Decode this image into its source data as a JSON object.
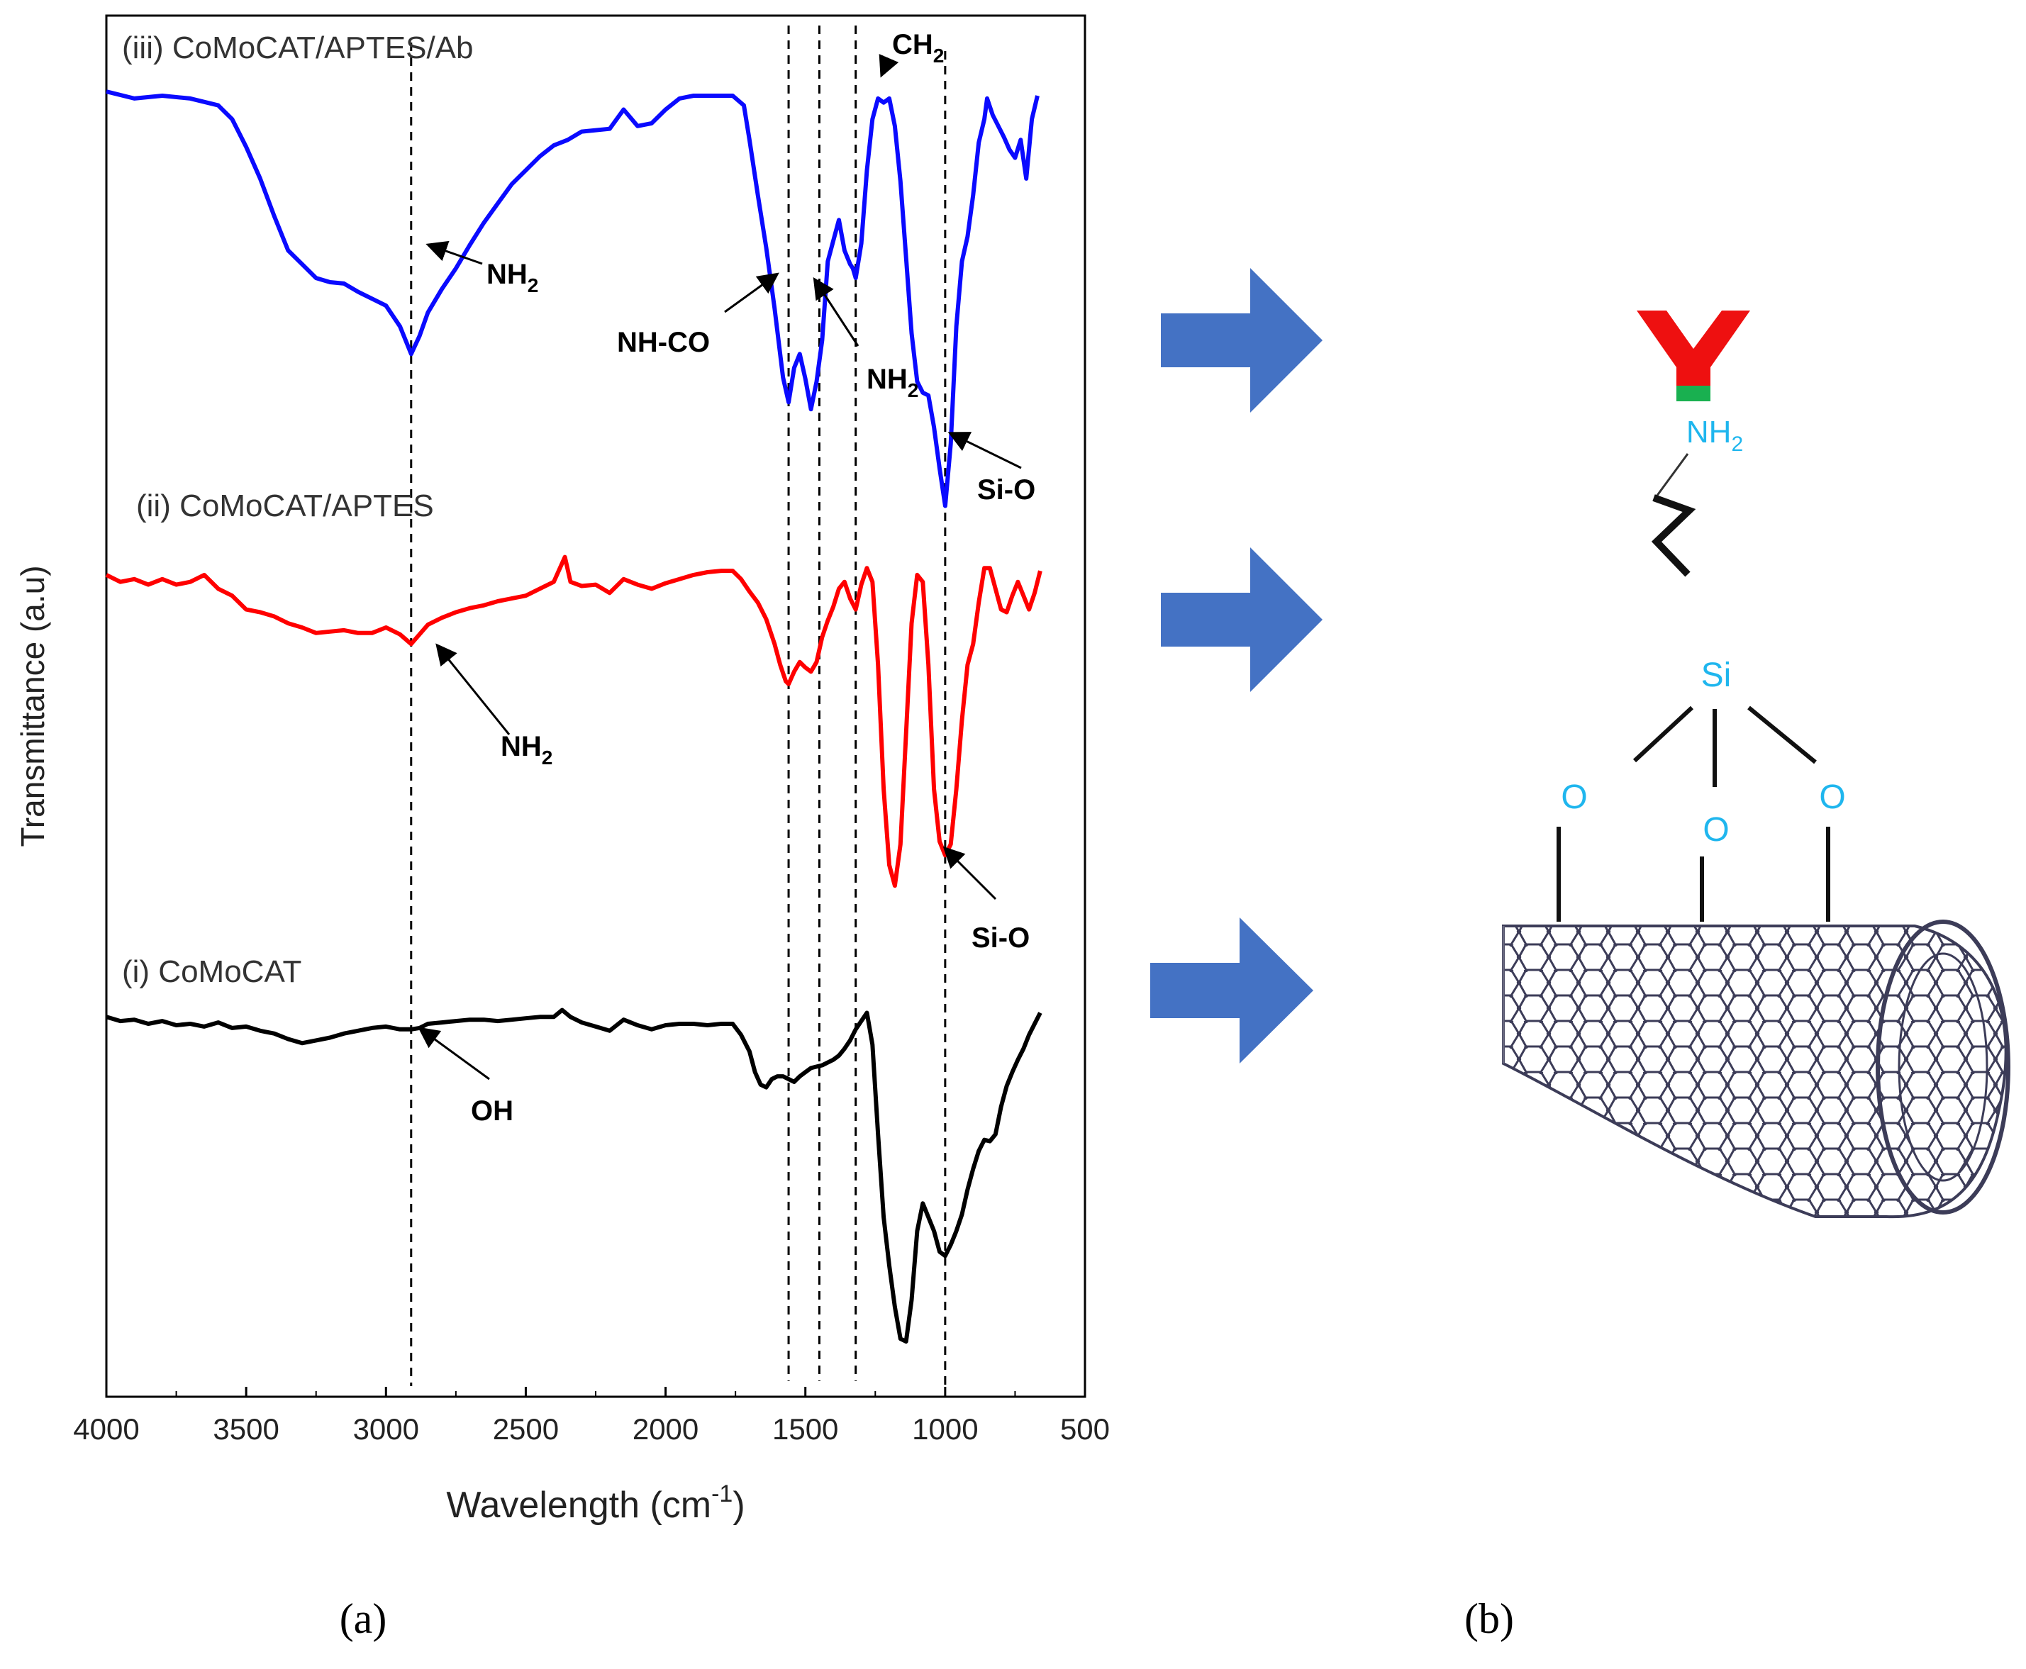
{
  "chart_data": {
    "type": "line",
    "xlabel": "Wavelength (cm",
    "xlabel_sup": "-1",
    "xlabel_end": ")",
    "ylabel": "Transmittance (a.u)",
    "xlim": [
      4000,
      500
    ],
    "x_ticks": [
      4000,
      3500,
      3000,
      2500,
      2000,
      1500,
      1000,
      500
    ],
    "y_ticks_labeled": false,
    "ref_lines_x": [
      2910,
      1560,
      1450,
      1320,
      1000
    ],
    "series": [
      {
        "name": "(iii) CoMoCAT/APTES/Ab",
        "color": "#0a0aff",
        "ylim_fraction": "top",
        "points": [
          [
            4000,
            0.055
          ],
          [
            3900,
            0.06
          ],
          [
            3800,
            0.058
          ],
          [
            3700,
            0.06
          ],
          [
            3600,
            0.065
          ],
          [
            3550,
            0.075
          ],
          [
            3500,
            0.095
          ],
          [
            3450,
            0.118
          ],
          [
            3400,
            0.145
          ],
          [
            3350,
            0.17
          ],
          [
            3300,
            0.18
          ],
          [
            3250,
            0.19
          ],
          [
            3200,
            0.193
          ],
          [
            3150,
            0.194
          ],
          [
            3100,
            0.2
          ],
          [
            3050,
            0.205
          ],
          [
            3000,
            0.21
          ],
          [
            2950,
            0.225
          ],
          [
            2910,
            0.245
          ],
          [
            2880,
            0.232
          ],
          [
            2850,
            0.215
          ],
          [
            2800,
            0.198
          ],
          [
            2750,
            0.183
          ],
          [
            2700,
            0.166
          ],
          [
            2650,
            0.15
          ],
          [
            2600,
            0.136
          ],
          [
            2550,
            0.122
          ],
          [
            2500,
            0.112
          ],
          [
            2450,
            0.102
          ],
          [
            2400,
            0.094
          ],
          [
            2350,
            0.09
          ],
          [
            2300,
            0.084
          ],
          [
            2200,
            0.082
          ],
          [
            2150,
            0.068
          ],
          [
            2100,
            0.08
          ],
          [
            2050,
            0.078
          ],
          [
            2000,
            0.068
          ],
          [
            1950,
            0.06
          ],
          [
            1900,
            0.058
          ],
          [
            1800,
            0.058
          ],
          [
            1760,
            0.058
          ],
          [
            1720,
            0.065
          ],
          [
            1700,
            0.09
          ],
          [
            1670,
            0.13
          ],
          [
            1640,
            0.168
          ],
          [
            1610,
            0.212
          ],
          [
            1580,
            0.262
          ],
          [
            1560,
            0.28
          ],
          [
            1540,
            0.255
          ],
          [
            1520,
            0.245
          ],
          [
            1500,
            0.263
          ],
          [
            1480,
            0.285
          ],
          [
            1460,
            0.265
          ],
          [
            1440,
            0.235
          ],
          [
            1420,
            0.178
          ],
          [
            1400,
            0.163
          ],
          [
            1380,
            0.148
          ],
          [
            1360,
            0.17
          ],
          [
            1340,
            0.18
          ],
          [
            1330,
            0.183
          ],
          [
            1320,
            0.19
          ],
          [
            1300,
            0.165
          ],
          [
            1280,
            0.112
          ],
          [
            1260,
            0.075
          ],
          [
            1240,
            0.06
          ],
          [
            1220,
            0.063
          ],
          [
            1200,
            0.06
          ],
          [
            1180,
            0.08
          ],
          [
            1160,
            0.12
          ],
          [
            1140,
            0.175
          ],
          [
            1120,
            0.23
          ],
          [
            1100,
            0.265
          ],
          [
            1080,
            0.273
          ],
          [
            1060,
            0.275
          ],
          [
            1040,
            0.298
          ],
          [
            1020,
            0.328
          ],
          [
            1000,
            0.355
          ],
          [
            980,
            0.31
          ],
          [
            960,
            0.225
          ],
          [
            940,
            0.178
          ],
          [
            920,
            0.16
          ],
          [
            900,
            0.13
          ],
          [
            880,
            0.092
          ],
          [
            860,
            0.075
          ],
          [
            850,
            0.06
          ],
          [
            830,
            0.072
          ],
          [
            810,
            0.08
          ],
          [
            790,
            0.088
          ],
          [
            770,
            0.097
          ],
          [
            750,
            0.103
          ],
          [
            730,
            0.09
          ],
          [
            710,
            0.118
          ],
          [
            690,
            0.075
          ],
          [
            670,
            0.058
          ]
        ]
      },
      {
        "name": "(ii) CoMoCAT/APTES",
        "color": "#ff0000",
        "points": [
          [
            4000,
            0.405
          ],
          [
            3950,
            0.41
          ],
          [
            3900,
            0.408
          ],
          [
            3850,
            0.412
          ],
          [
            3800,
            0.408
          ],
          [
            3750,
            0.412
          ],
          [
            3700,
            0.41
          ],
          [
            3650,
            0.405
          ],
          [
            3600,
            0.415
          ],
          [
            3550,
            0.42
          ],
          [
            3500,
            0.43
          ],
          [
            3450,
            0.432
          ],
          [
            3400,
            0.435
          ],
          [
            3350,
            0.44
          ],
          [
            3300,
            0.443
          ],
          [
            3250,
            0.447
          ],
          [
            3200,
            0.446
          ],
          [
            3150,
            0.445
          ],
          [
            3100,
            0.447
          ],
          [
            3050,
            0.447
          ],
          [
            3000,
            0.443
          ],
          [
            2950,
            0.448
          ],
          [
            2910,
            0.455
          ],
          [
            2880,
            0.448
          ],
          [
            2850,
            0.441
          ],
          [
            2800,
            0.436
          ],
          [
            2750,
            0.432
          ],
          [
            2700,
            0.429
          ],
          [
            2650,
            0.427
          ],
          [
            2600,
            0.424
          ],
          [
            2550,
            0.422
          ],
          [
            2500,
            0.42
          ],
          [
            2450,
            0.415
          ],
          [
            2400,
            0.41
          ],
          [
            2360,
            0.392
          ],
          [
            2340,
            0.41
          ],
          [
            2300,
            0.413
          ],
          [
            2250,
            0.412
          ],
          [
            2200,
            0.418
          ],
          [
            2150,
            0.408
          ],
          [
            2100,
            0.412
          ],
          [
            2050,
            0.415
          ],
          [
            2000,
            0.411
          ],
          [
            1950,
            0.408
          ],
          [
            1900,
            0.405
          ],
          [
            1850,
            0.403
          ],
          [
            1800,
            0.402
          ],
          [
            1760,
            0.402
          ],
          [
            1730,
            0.408
          ],
          [
            1700,
            0.417
          ],
          [
            1670,
            0.425
          ],
          [
            1640,
            0.437
          ],
          [
            1610,
            0.455
          ],
          [
            1590,
            0.47
          ],
          [
            1570,
            0.482
          ],
          [
            1560,
            0.484
          ],
          [
            1540,
            0.475
          ],
          [
            1520,
            0.468
          ],
          [
            1500,
            0.472
          ],
          [
            1480,
            0.475
          ],
          [
            1460,
            0.468
          ],
          [
            1440,
            0.45
          ],
          [
            1420,
            0.438
          ],
          [
            1400,
            0.428
          ],
          [
            1380,
            0.415
          ],
          [
            1360,
            0.41
          ],
          [
            1340,
            0.422
          ],
          [
            1320,
            0.43
          ],
          [
            1300,
            0.412
          ],
          [
            1280,
            0.4
          ],
          [
            1260,
            0.41
          ],
          [
            1240,
            0.47
          ],
          [
            1220,
            0.56
          ],
          [
            1200,
            0.615
          ],
          [
            1180,
            0.63
          ],
          [
            1160,
            0.6
          ],
          [
            1140,
            0.52
          ],
          [
            1120,
            0.44
          ],
          [
            1100,
            0.405
          ],
          [
            1080,
            0.41
          ],
          [
            1060,
            0.47
          ],
          [
            1040,
            0.56
          ],
          [
            1020,
            0.598
          ],
          [
            1000,
            0.608
          ],
          [
            980,
            0.6
          ],
          [
            960,
            0.56
          ],
          [
            940,
            0.51
          ],
          [
            920,
            0.47
          ],
          [
            900,
            0.455
          ],
          [
            880,
            0.425
          ],
          [
            860,
            0.4
          ],
          [
            840,
            0.4
          ],
          [
            820,
            0.415
          ],
          [
            800,
            0.43
          ],
          [
            780,
            0.432
          ],
          [
            760,
            0.42
          ],
          [
            740,
            0.41
          ],
          [
            720,
            0.42
          ],
          [
            700,
            0.43
          ],
          [
            680,
            0.418
          ],
          [
            660,
            0.402
          ]
        ]
      },
      {
        "name": "(i) CoMoCAT",
        "color": "#000000",
        "points": [
          [
            4000,
            0.725
          ],
          [
            3950,
            0.728
          ],
          [
            3900,
            0.727
          ],
          [
            3850,
            0.73
          ],
          [
            3800,
            0.728
          ],
          [
            3750,
            0.731
          ],
          [
            3700,
            0.73
          ],
          [
            3650,
            0.732
          ],
          [
            3600,
            0.729
          ],
          [
            3550,
            0.733
          ],
          [
            3500,
            0.732
          ],
          [
            3450,
            0.735
          ],
          [
            3400,
            0.737
          ],
          [
            3350,
            0.741
          ],
          [
            3300,
            0.744
          ],
          [
            3250,
            0.742
          ],
          [
            3200,
            0.74
          ],
          [
            3150,
            0.737
          ],
          [
            3100,
            0.735
          ],
          [
            3050,
            0.733
          ],
          [
            3000,
            0.732
          ],
          [
            2950,
            0.734
          ],
          [
            2910,
            0.734
          ],
          [
            2880,
            0.733
          ],
          [
            2850,
            0.73
          ],
          [
            2800,
            0.729
          ],
          [
            2750,
            0.728
          ],
          [
            2700,
            0.727
          ],
          [
            2650,
            0.727
          ],
          [
            2600,
            0.728
          ],
          [
            2550,
            0.727
          ],
          [
            2500,
            0.726
          ],
          [
            2450,
            0.725
          ],
          [
            2400,
            0.725
          ],
          [
            2370,
            0.72
          ],
          [
            2340,
            0.725
          ],
          [
            2300,
            0.729
          ],
          [
            2250,
            0.732
          ],
          [
            2200,
            0.735
          ],
          [
            2150,
            0.727
          ],
          [
            2100,
            0.731
          ],
          [
            2050,
            0.734
          ],
          [
            2000,
            0.731
          ],
          [
            1950,
            0.73
          ],
          [
            1900,
            0.73
          ],
          [
            1850,
            0.731
          ],
          [
            1800,
            0.73
          ],
          [
            1760,
            0.73
          ],
          [
            1730,
            0.738
          ],
          [
            1700,
            0.75
          ],
          [
            1680,
            0.765
          ],
          [
            1660,
            0.774
          ],
          [
            1640,
            0.776
          ],
          [
            1620,
            0.77
          ],
          [
            1600,
            0.768
          ],
          [
            1580,
            0.768
          ],
          [
            1560,
            0.77
          ],
          [
            1540,
            0.772
          ],
          [
            1520,
            0.768
          ],
          [
            1500,
            0.765
          ],
          [
            1480,
            0.762
          ],
          [
            1460,
            0.761
          ],
          [
            1440,
            0.76
          ],
          [
            1420,
            0.758
          ],
          [
            1400,
            0.756
          ],
          [
            1380,
            0.753
          ],
          [
            1360,
            0.748
          ],
          [
            1340,
            0.742
          ],
          [
            1320,
            0.734
          ],
          [
            1300,
            0.728
          ],
          [
            1280,
            0.722
          ],
          [
            1260,
            0.745
          ],
          [
            1240,
            0.81
          ],
          [
            1220,
            0.87
          ],
          [
            1200,
            0.905
          ],
          [
            1180,
            0.935
          ],
          [
            1160,
            0.958
          ],
          [
            1140,
            0.96
          ],
          [
            1120,
            0.93
          ],
          [
            1100,
            0.88
          ],
          [
            1080,
            0.86
          ],
          [
            1060,
            0.87
          ],
          [
            1040,
            0.88
          ],
          [
            1020,
            0.895
          ],
          [
            1000,
            0.898
          ],
          [
            980,
            0.89
          ],
          [
            960,
            0.88
          ],
          [
            940,
            0.868
          ],
          [
            920,
            0.85
          ],
          [
            900,
            0.835
          ],
          [
            880,
            0.822
          ],
          [
            860,
            0.814
          ],
          [
            840,
            0.815
          ],
          [
            820,
            0.81
          ],
          [
            800,
            0.79
          ],
          [
            780,
            0.775
          ],
          [
            760,
            0.765
          ],
          [
            740,
            0.756
          ],
          [
            720,
            0.748
          ],
          [
            700,
            0.738
          ],
          [
            680,
            0.73
          ],
          [
            660,
            0.722
          ]
        ]
      }
    ],
    "annotations": [
      {
        "text": "NH",
        "sub": "2",
        "series": 0
      },
      {
        "text": "NH-CO",
        "sub": "",
        "series": 0
      },
      {
        "text": "NH",
        "sub": "2",
        "series": 0
      },
      {
        "text": "CH",
        "sub": "2",
        "series": 0
      },
      {
        "text": "Si-O",
        "sub": "",
        "series": 0
      },
      {
        "text": "NH",
        "sub": "2",
        "series": 1
      },
      {
        "text": "Si-O",
        "sub": "",
        "series": 1
      },
      {
        "text": "OH",
        "sub": "",
        "series": 2
      }
    ]
  },
  "panels": {
    "a_label": "(a)",
    "b_label": "(b)"
  },
  "schematic": {
    "atoms": {
      "nh2": "NH",
      "nh2_sub": "2",
      "si": "Si",
      "o": "O"
    },
    "colors": {
      "arrow": "#4472c4",
      "atom_text": "#1fb6ee",
      "antibody_arms": "#ee1010",
      "antibody_base": "#19b050",
      "nanotube": "#3c3c58"
    }
  }
}
